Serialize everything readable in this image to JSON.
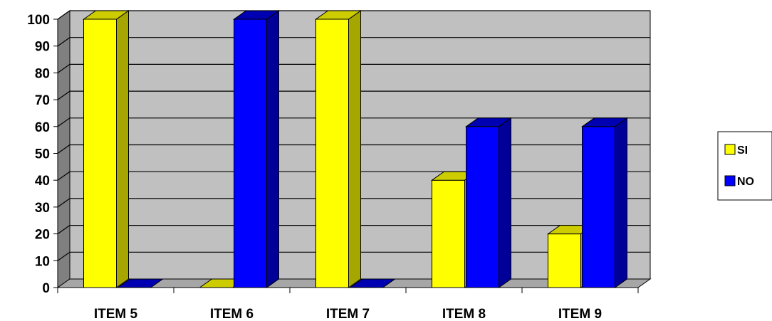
{
  "chart_data": {
    "type": "bar",
    "style": "3d-clustered-column",
    "categories": [
      "ITEM 5",
      "ITEM 6",
      "ITEM 7",
      "ITEM 8",
      "ITEM 9"
    ],
    "series": [
      {
        "name": "SI",
        "values": [
          100,
          0,
          100,
          40,
          20
        ],
        "color": "#FFFF00",
        "side_color": "#A6A600",
        "top_color": "#CCCC00"
      },
      {
        "name": "NO",
        "values": [
          0,
          100,
          0,
          60,
          60
        ],
        "color": "#0000FF",
        "side_color": "#000099",
        "top_color": "#0000B3"
      }
    ],
    "yticks": [
      "0",
      "10",
      "20",
      "30",
      "40",
      "50",
      "60",
      "70",
      "80",
      "90",
      "100"
    ],
    "ylim": [
      0,
      100
    ],
    "grid": true,
    "wall_color": "#C0C0C0",
    "floor_color": "#A6A6A6",
    "legend_position": "right"
  }
}
